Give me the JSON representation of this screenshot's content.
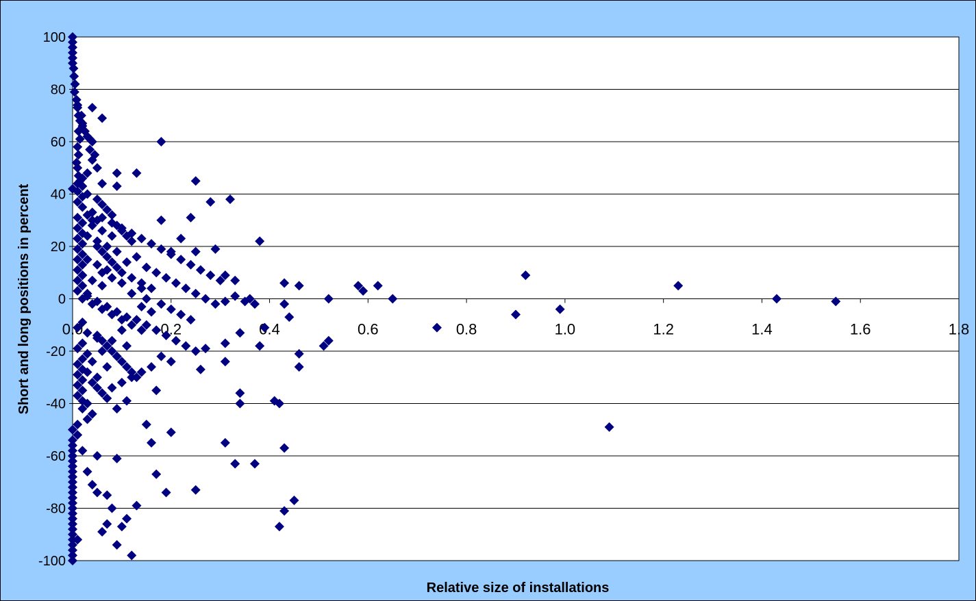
{
  "chart_data": {
    "type": "scatter",
    "title": "",
    "xlabel": "Relative size of installations",
    "ylabel": "Short and long positions in percent",
    "xlim": [
      0,
      1.8
    ],
    "ylim": [
      -100,
      100
    ],
    "x_ticks": [
      "0.0",
      "0.2",
      "0.4",
      "0.6",
      "0.8",
      "1.0",
      "1.2",
      "1.4",
      "1.6",
      "1.8"
    ],
    "y_ticks": [
      "100",
      "80",
      "60",
      "40",
      "20",
      "0",
      "-20",
      "-40",
      "-60",
      "-80",
      "-100"
    ],
    "grid": "horizontal",
    "legend": "none",
    "marker": "diamond",
    "colors": {
      "background": "#99ccff",
      "plot_area": "#ffffff",
      "marker": "#000080",
      "gridline": "#000000"
    },
    "series": [
      {
        "points": [
          [
            0.0,
            100
          ],
          [
            0.0,
            98
          ],
          [
            0.0,
            96
          ],
          [
            0.0,
            94
          ],
          [
            0.0,
            92
          ],
          [
            0.0,
            90
          ],
          [
            0.002,
            88
          ],
          [
            0.003,
            85
          ],
          [
            0.005,
            82
          ],
          [
            0.004,
            79
          ],
          [
            0.008,
            76
          ],
          [
            0.01,
            73
          ],
          [
            0.012,
            70
          ],
          [
            0.015,
            68
          ],
          [
            0.02,
            66
          ],
          [
            0.025,
            64
          ],
          [
            0.03,
            62
          ],
          [
            0.04,
            60
          ],
          [
            0.035,
            57
          ],
          [
            0.045,
            55
          ],
          [
            0.04,
            53
          ],
          [
            0.05,
            50
          ],
          [
            0.03,
            48
          ],
          [
            0.02,
            46
          ],
          [
            0.01,
            44
          ],
          [
            0.0,
            42
          ],
          [
            0.03,
            40
          ],
          [
            0.05,
            38
          ],
          [
            0.06,
            36
          ],
          [
            0.07,
            34
          ],
          [
            0.08,
            32
          ],
          [
            0.04,
            30
          ],
          [
            0.09,
            28
          ],
          [
            0.1,
            26
          ],
          [
            0.11,
            24
          ],
          [
            0.12,
            22
          ],
          [
            0.05,
            20
          ],
          [
            0.06,
            18
          ],
          [
            0.07,
            16
          ],
          [
            0.08,
            14
          ],
          [
            0.09,
            12
          ],
          [
            0.1,
            10
          ],
          [
            0.12,
            8
          ],
          [
            0.14,
            6
          ],
          [
            0.16,
            4
          ],
          [
            0.03,
            2
          ],
          [
            0.02,
            0
          ],
          [
            0.04,
            -2
          ],
          [
            0.06,
            -4
          ],
          [
            0.08,
            -6
          ],
          [
            0.1,
            -8
          ],
          [
            0.12,
            -10
          ],
          [
            0.14,
            -12
          ],
          [
            0.05,
            -14
          ],
          [
            0.06,
            -16
          ],
          [
            0.07,
            -18
          ],
          [
            0.08,
            -20
          ],
          [
            0.09,
            -22
          ],
          [
            0.1,
            -24
          ],
          [
            0.11,
            -26
          ],
          [
            0.12,
            -28
          ],
          [
            0.13,
            -30
          ],
          [
            0.04,
            -32
          ],
          [
            0.05,
            -34
          ],
          [
            0.06,
            -36
          ],
          [
            0.07,
            -38
          ],
          [
            0.03,
            -40
          ],
          [
            0.02,
            -42
          ],
          [
            0.04,
            -44
          ],
          [
            0.03,
            -46
          ],
          [
            0.01,
            -48
          ],
          [
            0.0,
            -50
          ],
          [
            0.01,
            -52
          ],
          [
            0.0,
            -54
          ],
          [
            0.0,
            -56
          ],
          [
            0.0,
            -58
          ],
          [
            0.0,
            -60
          ],
          [
            0.0,
            -62
          ],
          [
            0.0,
            -64
          ],
          [
            0.0,
            -66
          ],
          [
            0.0,
            -68
          ],
          [
            0.0,
            -70
          ],
          [
            0.0,
            -72
          ],
          [
            0.0,
            -74
          ],
          [
            0.0,
            -76
          ],
          [
            0.0,
            -78
          ],
          [
            0.0,
            -80
          ],
          [
            0.0,
            -82
          ],
          [
            0.0,
            -84
          ],
          [
            0.0,
            -86
          ],
          [
            0.0,
            -88
          ],
          [
            0.0,
            -90
          ],
          [
            0.0,
            -92
          ],
          [
            0.0,
            -94
          ],
          [
            0.0,
            -96
          ],
          [
            0.0,
            -98
          ],
          [
            0.0,
            -100
          ],
          [
            0.01,
            74
          ],
          [
            0.04,
            73
          ],
          [
            0.06,
            69
          ],
          [
            0.035,
            61
          ],
          [
            0.18,
            60
          ],
          [
            0.09,
            48
          ],
          [
            0.13,
            48
          ],
          [
            0.25,
            45
          ],
          [
            0.06,
            44
          ],
          [
            0.09,
            43
          ],
          [
            0.28,
            37
          ],
          [
            0.32,
            38
          ],
          [
            0.24,
            31
          ],
          [
            0.18,
            30
          ],
          [
            0.38,
            22
          ],
          [
            0.22,
            23
          ],
          [
            0.29,
            19
          ],
          [
            0.25,
            18
          ],
          [
            0.2,
            18
          ],
          [
            0.31,
            9
          ],
          [
            0.33,
            7
          ],
          [
            0.36,
            0
          ],
          [
            0.43,
            6
          ],
          [
            0.46,
            5
          ],
          [
            0.58,
            5
          ],
          [
            0.59,
            3
          ],
          [
            0.62,
            5
          ],
          [
            0.65,
            0
          ],
          [
            0.52,
            0
          ],
          [
            0.43,
            -2
          ],
          [
            0.44,
            -7
          ],
          [
            0.39,
            -11
          ],
          [
            0.38,
            -18
          ],
          [
            0.34,
            -13
          ],
          [
            0.31,
            -17
          ],
          [
            0.31,
            -24
          ],
          [
            0.26,
            -27
          ],
          [
            0.27,
            -19
          ],
          [
            0.46,
            -21
          ],
          [
            0.46,
            -26
          ],
          [
            0.51,
            -18
          ],
          [
            0.52,
            -16
          ],
          [
            0.74,
            -11
          ],
          [
            0.9,
            -6
          ],
          [
            0.92,
            9
          ],
          [
            0.99,
            -4
          ],
          [
            1.09,
            -49
          ],
          [
            1.23,
            5
          ],
          [
            1.43,
            0
          ],
          [
            1.55,
            -1
          ],
          [
            0.2,
            -51
          ],
          [
            0.15,
            -48
          ],
          [
            0.16,
            -55
          ],
          [
            0.17,
            -67
          ],
          [
            0.19,
            -74
          ],
          [
            0.25,
            -73
          ],
          [
            0.31,
            -55
          ],
          [
            0.33,
            -63
          ],
          [
            0.34,
            -36
          ],
          [
            0.34,
            -40
          ],
          [
            0.37,
            -63
          ],
          [
            0.41,
            -39
          ],
          [
            0.42,
            -40
          ],
          [
            0.43,
            -57
          ],
          [
            0.43,
            -81
          ],
          [
            0.42,
            -87
          ],
          [
            0.45,
            -77
          ],
          [
            0.17,
            -35
          ],
          [
            0.09,
            -61
          ],
          [
            0.07,
            -75
          ],
          [
            0.08,
            -80
          ],
          [
            0.06,
            -89
          ],
          [
            0.05,
            -74
          ],
          [
            0.03,
            -66
          ],
          [
            0.01,
            -92
          ],
          [
            0.13,
            -79
          ],
          [
            0.11,
            -84
          ],
          [
            0.1,
            -87
          ],
          [
            0.09,
            -94
          ],
          [
            0.12,
            -98
          ],
          [
            0.07,
            -86
          ],
          [
            0.04,
            -71
          ],
          [
            0.05,
            -60
          ],
          [
            0.02,
            -58
          ],
          [
            0.11,
            -39
          ],
          [
            0.09,
            -42
          ],
          [
            0.02,
            35
          ],
          [
            0.04,
            33
          ],
          [
            0.06,
            31
          ],
          [
            0.08,
            29
          ],
          [
            0.1,
            27
          ],
          [
            0.12,
            25
          ],
          [
            0.14,
            23
          ],
          [
            0.16,
            21
          ],
          [
            0.18,
            19
          ],
          [
            0.2,
            17
          ],
          [
            0.22,
            15
          ],
          [
            0.24,
            13
          ],
          [
            0.26,
            11
          ],
          [
            0.28,
            9
          ],
          [
            0.3,
            7
          ],
          [
            0.15,
            12
          ],
          [
            0.17,
            10
          ],
          [
            0.19,
            8
          ],
          [
            0.21,
            6
          ],
          [
            0.23,
            4
          ],
          [
            0.25,
            2
          ],
          [
            0.27,
            0
          ],
          [
            0.29,
            -2
          ],
          [
            0.31,
            -1
          ],
          [
            0.33,
            1
          ],
          [
            0.35,
            -1
          ],
          [
            0.37,
            -2
          ],
          [
            0.13,
            -8
          ],
          [
            0.15,
            -10
          ],
          [
            0.17,
            -12
          ],
          [
            0.19,
            -14
          ],
          [
            0.21,
            -16
          ],
          [
            0.23,
            -18
          ],
          [
            0.25,
            -20
          ],
          [
            0.18,
            -22
          ],
          [
            0.2,
            -24
          ],
          [
            0.16,
            -26
          ],
          [
            0.14,
            -28
          ],
          [
            0.12,
            -30
          ],
          [
            0.1,
            -32
          ],
          [
            0.08,
            -34
          ],
          [
            0.03,
            15
          ],
          [
            0.05,
            13
          ],
          [
            0.07,
            11
          ],
          [
            0.02,
            9
          ],
          [
            0.04,
            7
          ],
          [
            0.06,
            5
          ],
          [
            0.01,
            3
          ],
          [
            0.03,
            1
          ],
          [
            0.05,
            -1
          ],
          [
            0.07,
            -3
          ],
          [
            0.09,
            -5
          ],
          [
            0.11,
            -7
          ],
          [
            0.02,
            -9
          ],
          [
            0.01,
            -11
          ],
          [
            0.03,
            -13
          ],
          [
            0.05,
            -15
          ],
          [
            0.02,
            -17
          ],
          [
            0.01,
            -19
          ],
          [
            0.03,
            -21
          ],
          [
            0.02,
            -23
          ],
          [
            0.01,
            -25
          ],
          [
            0.02,
            -27
          ],
          [
            0.01,
            -29
          ],
          [
            0.02,
            -31
          ],
          [
            0.01,
            -33
          ],
          [
            0.02,
            -35
          ],
          [
            0.01,
            -37
          ],
          [
            0.02,
            -39
          ],
          [
            0.01,
            27
          ],
          [
            0.02,
            25
          ],
          [
            0.01,
            23
          ],
          [
            0.02,
            21
          ],
          [
            0.01,
            19
          ],
          [
            0.02,
            17
          ],
          [
            0.01,
            15
          ],
          [
            0.02,
            13
          ],
          [
            0.01,
            11
          ],
          [
            0.02,
            9
          ],
          [
            0.01,
            7
          ],
          [
            0.02,
            5
          ],
          [
            0.01,
            31
          ],
          [
            0.02,
            29
          ],
          [
            0.01,
            37
          ],
          [
            0.02,
            39
          ],
          [
            0.01,
            41
          ],
          [
            0.02,
            43
          ],
          [
            0.015,
            45
          ],
          [
            0.012,
            47
          ],
          [
            0.01,
            50
          ],
          [
            0.008,
            52
          ],
          [
            0.012,
            55
          ],
          [
            0.01,
            58
          ],
          [
            0.015,
            61
          ],
          [
            0.012,
            64
          ],
          [
            0.02,
            67
          ],
          [
            0.018,
            70
          ],
          [
            0.14,
            -3
          ],
          [
            0.16,
            -5
          ],
          [
            0.12,
            2
          ],
          [
            0.14,
            4
          ],
          [
            0.1,
            6
          ],
          [
            0.08,
            8
          ],
          [
            0.06,
            10
          ],
          [
            0.11,
            14
          ],
          [
            0.13,
            16
          ],
          [
            0.09,
            18
          ],
          [
            0.07,
            20
          ],
          [
            0.05,
            22
          ],
          [
            0.03,
            24
          ],
          [
            0.15,
            0
          ],
          [
            0.18,
            -2
          ],
          [
            0.2,
            -4
          ],
          [
            0.22,
            -6
          ],
          [
            0.24,
            -8
          ],
          [
            0.1,
            -12
          ],
          [
            0.08,
            -16
          ],
          [
            0.06,
            -20
          ],
          [
            0.04,
            -24
          ],
          [
            0.03,
            -28
          ],
          [
            0.05,
            -30
          ],
          [
            0.07,
            -26
          ],
          [
            0.09,
            -22
          ],
          [
            0.11,
            -18
          ],
          [
            0.04,
            28
          ],
          [
            0.06,
            26
          ],
          [
            0.08,
            24
          ],
          [
            0.03,
            32
          ],
          [
            0.05,
            30
          ]
        ]
      }
    ]
  }
}
